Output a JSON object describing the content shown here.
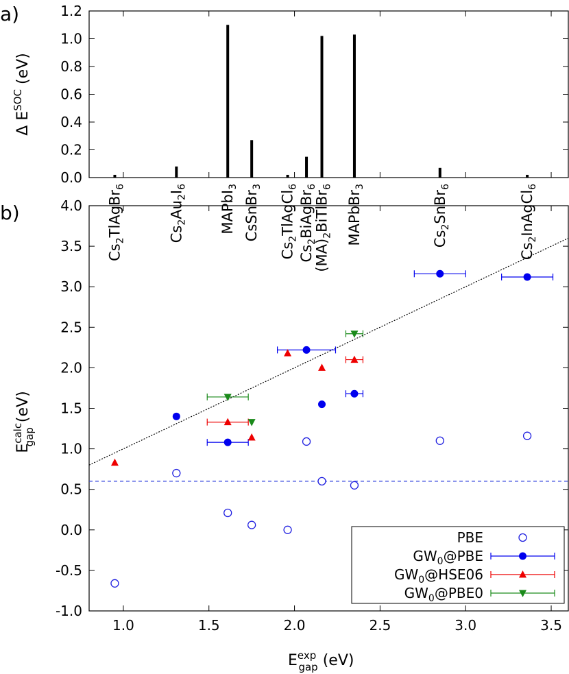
{
  "chart_data": [
    {
      "type": "bar",
      "panel_label": "a)",
      "ylabel": {
        "main": "Δ E",
        "sup": "SOC",
        "unit": " (eV)"
      },
      "ylim": [
        0,
        1.2
      ],
      "yticks": [
        "0.0",
        "0.2",
        "0.4",
        "0.6",
        "0.8",
        "1.0",
        "1.2"
      ],
      "x_shared_with": "panel b x-axis (E_gap^exp, eV)",
      "bars": [
        {
          "x": 0.95,
          "value": 0.02
        },
        {
          "x": 1.31,
          "value": 0.08
        },
        {
          "x": 1.61,
          "value": 1.1
        },
        {
          "x": 1.75,
          "value": 0.27
        },
        {
          "x": 1.96,
          "value": 0.02
        },
        {
          "x": 2.07,
          "value": 0.15
        },
        {
          "x": 2.16,
          "value": 1.02
        },
        {
          "x": 2.35,
          "value": 1.03
        },
        {
          "x": 2.85,
          "value": 0.07
        },
        {
          "x": 3.36,
          "value": 0.02
        }
      ],
      "materials": [
        {
          "x": 0.95,
          "parts": [
            [
              "Cs",
              ""
            ],
            [
              "2",
              "sub"
            ],
            [
              "TlAgBr",
              ""
            ],
            [
              "6",
              "sub"
            ]
          ]
        },
        {
          "x": 1.31,
          "parts": [
            [
              "Cs",
              ""
            ],
            [
              "2",
              "sub"
            ],
            [
              "Au",
              ""
            ],
            [
              "2",
              "sub"
            ],
            [
              "I",
              ""
            ],
            [
              "6",
              "sub"
            ]
          ]
        },
        {
          "x": 1.61,
          "parts": [
            [
              "MAPbI",
              ""
            ],
            [
              "3",
              "sub"
            ]
          ]
        },
        {
          "x": 1.75,
          "parts": [
            [
              "CsSnBr",
              ""
            ],
            [
              "3",
              "sub"
            ]
          ]
        },
        {
          "x": 1.96,
          "parts": [
            [
              "Cs",
              ""
            ],
            [
              "2",
              "sub"
            ],
            [
              "TlAgCl",
              ""
            ],
            [
              "6",
              "sub"
            ]
          ]
        },
        {
          "x": 2.07,
          "parts": [
            [
              "Cs",
              ""
            ],
            [
              "2",
              "sub"
            ],
            [
              "BiAgBr",
              ""
            ],
            [
              "6",
              "sub"
            ]
          ]
        },
        {
          "x": 2.16,
          "parts": [
            [
              "(MA)",
              ""
            ],
            [
              "2",
              "sub"
            ],
            [
              "BiTlBr",
              ""
            ],
            [
              "6",
              "sub"
            ]
          ]
        },
        {
          "x": 2.35,
          "parts": [
            [
              "MAPbBr",
              ""
            ],
            [
              "3",
              "sub"
            ]
          ]
        },
        {
          "x": 2.85,
          "parts": [
            [
              "Cs",
              ""
            ],
            [
              "2",
              "sub"
            ],
            [
              "SnBr",
              ""
            ],
            [
              "6",
              "sub"
            ]
          ]
        },
        {
          "x": 3.36,
          "parts": [
            [
              "Cs",
              ""
            ],
            [
              "2",
              "sub"
            ],
            [
              "InAgCl",
              ""
            ],
            [
              "6",
              "sub"
            ]
          ]
        }
      ]
    },
    {
      "type": "scatter",
      "panel_label": "b)",
      "xlabel": {
        "main": "E",
        "sup": "exp",
        "sub": "gap",
        "unit": " (eV)"
      },
      "ylabel": {
        "main": "E",
        "sup": "calc",
        "sub": "gap",
        "unit": " (eV)"
      },
      "xlim": [
        0.8,
        3.6
      ],
      "ylim": [
        -1.0,
        4.0
      ],
      "xticks": [
        "1.0",
        "1.5",
        "2.0",
        "2.5",
        "3.0",
        "3.5"
      ],
      "yticks": [
        "-1.0",
        "-0.5",
        "0.0",
        "0.5",
        "1.0",
        "1.5",
        "2.0",
        "2.5",
        "3.0",
        "3.5",
        "4.0"
      ],
      "reference_lines": [
        {
          "style": "dotted",
          "color": "#000000",
          "from": [
            0.8,
            0.8
          ],
          "to": [
            3.6,
            3.6
          ]
        },
        {
          "style": "dashed",
          "color": "#3344dd",
          "y": 0.6
        }
      ],
      "legend_position": "bottom-right",
      "series": [
        {
          "name": "PBE",
          "marker": "open-circle",
          "color": "#1f1fe0",
          "points": [
            {
              "x": 0.95,
              "y": -0.66
            },
            {
              "x": 1.31,
              "y": 0.7
            },
            {
              "x": 1.61,
              "y": 0.21
            },
            {
              "x": 1.75,
              "y": 0.06
            },
            {
              "x": 1.96,
              "y": 0.0
            },
            {
              "x": 2.07,
              "y": 1.09
            },
            {
              "x": 2.16,
              "y": 0.6
            },
            {
              "x": 2.35,
              "y": 0.55
            },
            {
              "x": 2.85,
              "y": 1.1
            },
            {
              "x": 3.36,
              "y": 1.16
            }
          ]
        },
        {
          "name": "GW",
          "name_sub": "0",
          "name_tail": "@PBE",
          "marker": "filled-circle",
          "color": "#0000ee",
          "points": [
            {
              "x": 1.31,
              "y": 1.4
            },
            {
              "x": 1.61,
              "y": 1.08,
              "xerr": [
                1.49,
                1.73
              ]
            },
            {
              "x": 2.07,
              "y": 2.22,
              "xerr": [
                1.9,
                2.24
              ]
            },
            {
              "x": 2.16,
              "y": 1.55
            },
            {
              "x": 2.35,
              "y": 1.68,
              "xerr": [
                2.3,
                2.4
              ]
            },
            {
              "x": 2.85,
              "y": 3.16,
              "xerr": [
                2.7,
                3.0
              ]
            },
            {
              "x": 3.36,
              "y": 3.12,
              "xerr": [
                3.21,
                3.51
              ]
            }
          ]
        },
        {
          "name": "GW",
          "name_sub": "0",
          "name_tail": "@HSE06",
          "marker": "triangle-up",
          "color": "#ee0000",
          "points": [
            {
              "x": 0.95,
              "y": 0.83
            },
            {
              "x": 1.61,
              "y": 1.33,
              "xerr": [
                1.49,
                1.73
              ]
            },
            {
              "x": 1.75,
              "y": 1.14
            },
            {
              "x": 1.96,
              "y": 2.18
            },
            {
              "x": 2.16,
              "y": 2.0
            },
            {
              "x": 2.35,
              "y": 2.1,
              "xerr": [
                2.3,
                2.4
              ]
            }
          ]
        },
        {
          "name": "GW",
          "name_sub": "0",
          "name_tail": "@PBE0",
          "marker": "triangle-down",
          "color": "#1a8a1a",
          "points": [
            {
              "x": 1.61,
              "y": 1.64,
              "xerr": [
                1.49,
                1.73
              ]
            },
            {
              "x": 1.75,
              "y": 1.33
            },
            {
              "x": 2.35,
              "y": 2.42,
              "xerr": [
                2.3,
                2.4
              ]
            }
          ]
        }
      ]
    }
  ]
}
